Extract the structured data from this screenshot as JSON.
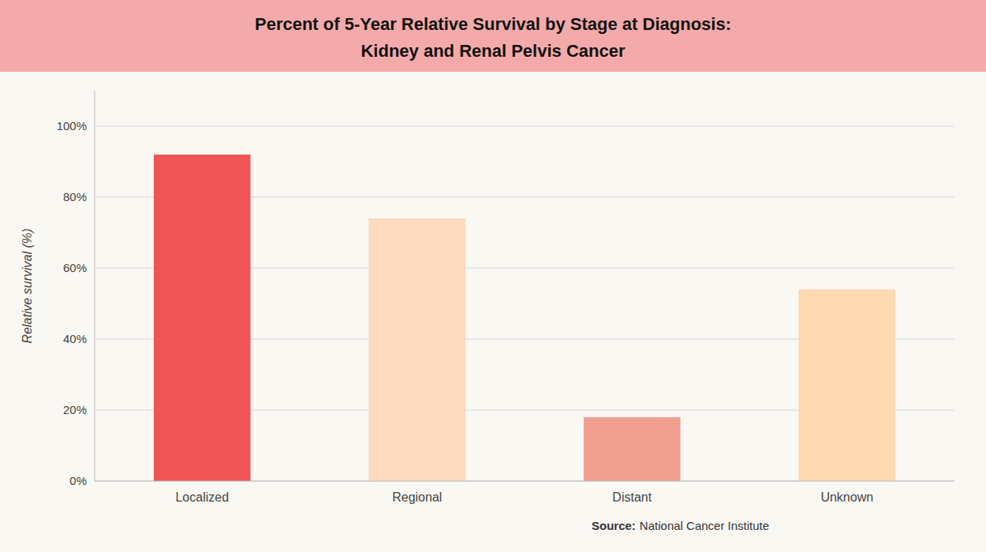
{
  "chart_data": {
    "type": "bar",
    "title": "Percent of 5-Year Relative Survival by Stage at Diagnosis:",
    "subtitle": "Kidney and Renal Pelvis Cancer",
    "categories": [
      "Localized",
      "Regional",
      "Distant",
      "Unknown"
    ],
    "values": [
      92,
      74,
      18,
      54
    ],
    "colors": [
      "#f05555",
      "#fcdbbf",
      "#f0a090",
      "#fcd9b0"
    ],
    "ylabel": "Relative survival (%)",
    "ylim": [
      0,
      110
    ],
    "yticks": [
      {
        "value": 0,
        "label": "0%"
      },
      {
        "value": 20,
        "label": "20%"
      },
      {
        "value": 40,
        "label": "40%"
      },
      {
        "value": 60,
        "label": "60%"
      },
      {
        "value": 80,
        "label": "80%"
      },
      {
        "value": 100,
        "label": "100%"
      }
    ],
    "grid": true,
    "annotations": [
      "Source:",
      "National Cancer Institute"
    ]
  }
}
